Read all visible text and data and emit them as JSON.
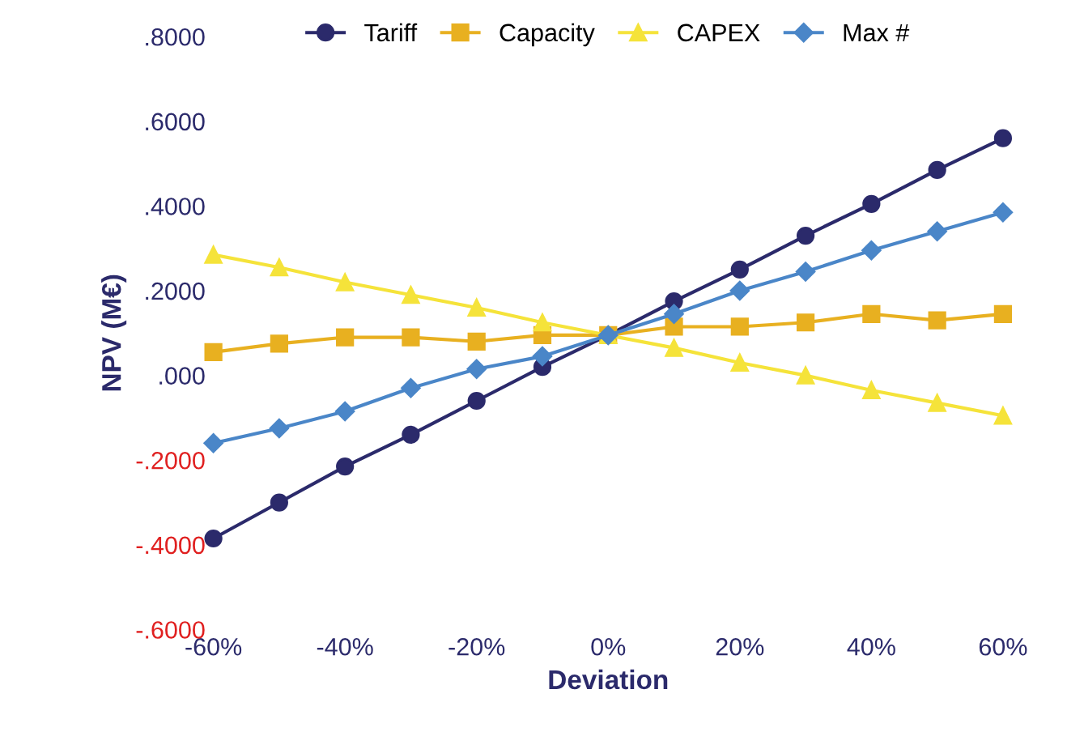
{
  "chart_data": {
    "type": "line",
    "xlabel": "Deviation",
    "ylabel": "NPV (M€)",
    "x": [
      -60,
      -50,
      -40,
      -30,
      -20,
      -10,
      0,
      10,
      20,
      30,
      40,
      50,
      60
    ],
    "series": [
      {
        "name": "Tariff",
        "color": "#2b2a6b",
        "marker": "circle",
        "values": [
          -0.385,
          -0.3,
          -0.215,
          -0.14,
          -0.06,
          0.02,
          0.095,
          0.175,
          0.25,
          0.33,
          0.405,
          0.485,
          0.56
        ]
      },
      {
        "name": "Capacity",
        "color": "#e8b020",
        "marker": "square",
        "values": [
          0.055,
          0.075,
          0.09,
          0.09,
          0.08,
          0.095,
          0.095,
          0.115,
          0.115,
          0.125,
          0.145,
          0.13,
          0.145
        ]
      },
      {
        "name": "CAPEX",
        "color": "#f5e33a",
        "marker": "triangle",
        "values": [
          0.285,
          0.255,
          0.22,
          0.19,
          0.16,
          0.125,
          0.095,
          0.065,
          0.03,
          0.0,
          -0.035,
          -0.065,
          -0.095
        ]
      },
      {
        "name": "Max #",
        "color": "#4a86c8",
        "marker": "diamond",
        "values": [
          -0.16,
          -0.125,
          -0.085,
          -0.03,
          0.015,
          0.045,
          0.095,
          0.145,
          0.2,
          0.245,
          0.295,
          0.34,
          0.385
        ]
      }
    ],
    "xlim": [
      -60,
      60
    ],
    "xticks": [
      {
        "value": -60,
        "label": "-60%"
      },
      {
        "value": -40,
        "label": "-40%"
      },
      {
        "value": -20,
        "label": "-20%"
      },
      {
        "value": 0,
        "label": "0%"
      },
      {
        "value": 20,
        "label": "20%"
      },
      {
        "value": 40,
        "label": "40%"
      },
      {
        "value": 60,
        "label": "60%"
      }
    ],
    "ylim": [
      -0.6,
      0.8
    ],
    "yticks": [
      {
        "value": -0.6,
        "label": "-.6000"
      },
      {
        "value": -0.4,
        "label": "-.4000"
      },
      {
        "value": -0.2,
        "label": "-.2000"
      },
      {
        "value": 0,
        "label": ".000"
      },
      {
        "value": 0.2,
        "label": ".2000"
      },
      {
        "value": 0.4,
        "label": ".4000"
      },
      {
        "value": 0.6,
        "label": ".6000"
      },
      {
        "value": 0.8,
        "label": ".8000"
      }
    ],
    "grid": false,
    "legend": "top"
  }
}
